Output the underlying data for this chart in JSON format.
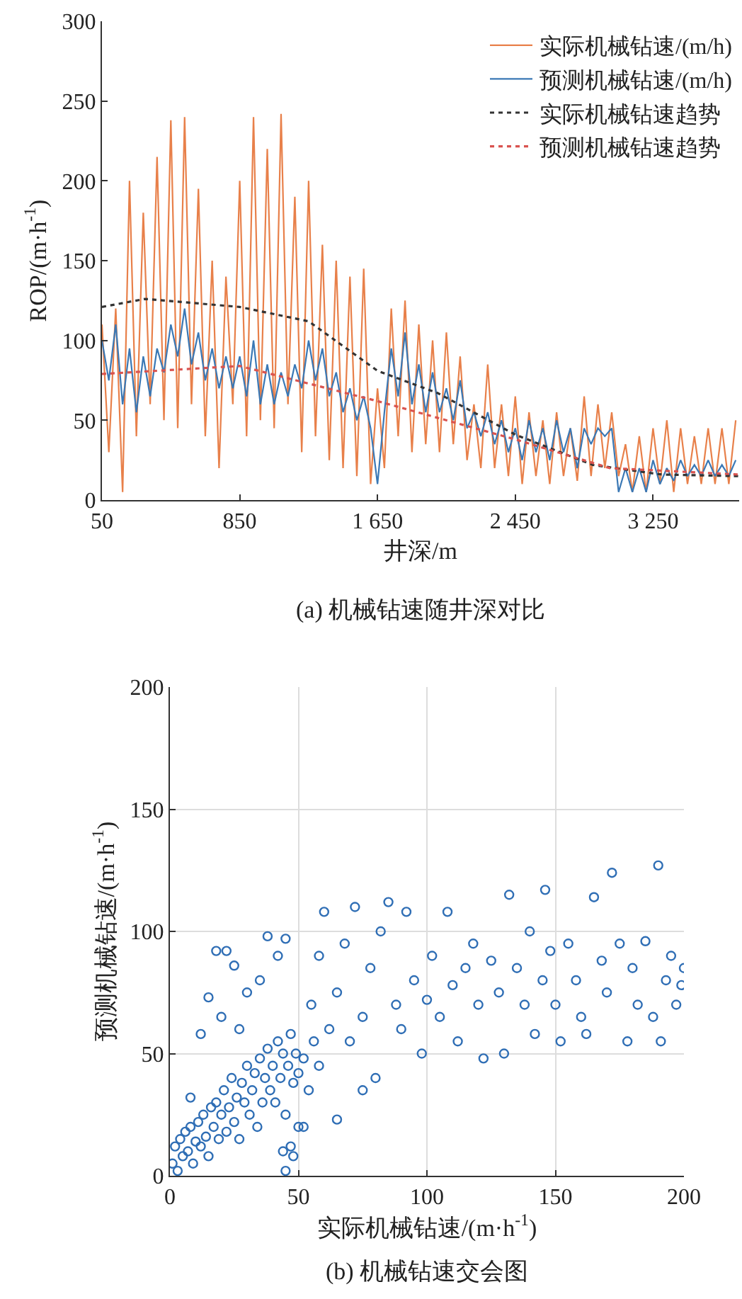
{
  "chart_data": [
    {
      "type": "line",
      "xlabel": "井深/m",
      "ylabel": "ROP/(m·h$^{-1}$)",
      "annotations": [
        "(a) 机械钻速随井深对比"
      ],
      "xlim": [
        50,
        3750
      ],
      "xticks": [
        50,
        850,
        {
          "value": 1650,
          "label": "1 650"
        },
        {
          "value": 2450,
          "label": "2 450"
        },
        {
          "value": 3250,
          "label": "3 250"
        }
      ],
      "ylim": [
        0,
        300
      ],
      "yticks": [
        0,
        50,
        100,
        150,
        200,
        250,
        300
      ],
      "grid": false,
      "legend": "top right",
      "x": [
        50,
        90,
        130,
        170,
        210,
        250,
        290,
        330,
        370,
        410,
        450,
        490,
        530,
        570,
        610,
        650,
        690,
        730,
        770,
        810,
        850,
        890,
        930,
        970,
        1010,
        1050,
        1090,
        1130,
        1170,
        1210,
        1250,
        1290,
        1330,
        1370,
        1410,
        1450,
        1490,
        1530,
        1570,
        1610,
        1650,
        1690,
        1730,
        1770,
        1810,
        1850,
        1890,
        1930,
        1970,
        2010,
        2050,
        2090,
        2130,
        2170,
        2210,
        2250,
        2290,
        2330,
        2370,
        2410,
        2450,
        2490,
        2530,
        2570,
        2610,
        2650,
        2690,
        2730,
        2770,
        2810,
        2850,
        2890,
        2930,
        2970,
        3010,
        3050,
        3090,
        3130,
        3170,
        3210,
        3250,
        3290,
        3330,
        3370,
        3410,
        3450,
        3490,
        3530,
        3570,
        3610,
        3650,
        3690,
        3730
      ],
      "series": [
        {
          "name": "实际机械钻速/(m/h)",
          "color": "#e8804a",
          "line_style": "solid",
          "values": [
            110,
            30,
            120,
            5,
            200,
            40,
            180,
            60,
            215,
            50,
            238,
            45,
            240,
            60,
            195,
            40,
            150,
            20,
            140,
            60,
            200,
            40,
            240,
            50,
            220,
            45,
            242,
            60,
            190,
            30,
            200,
            40,
            160,
            25,
            150,
            20,
            140,
            15,
            145,
            10,
            70,
            20,
            120,
            40,
            125,
            30,
            110,
            35,
            100,
            30,
            105,
            35,
            90,
            25,
            60,
            20,
            85,
            20,
            60,
            15,
            65,
            10,
            55,
            15,
            50,
            10,
            55,
            15,
            45,
            12,
            65,
            15,
            60,
            20,
            55,
            15,
            35,
            5,
            40,
            5,
            45,
            10,
            50,
            5,
            45,
            10,
            40,
            10,
            45,
            10,
            45,
            10,
            50
          ]
        },
        {
          "name": "预测机械钻速/(m/h)",
          "color": "#3a78b5",
          "line_style": "solid",
          "values": [
            100,
            75,
            110,
            60,
            95,
            55,
            90,
            65,
            95,
            80,
            110,
            90,
            120,
            85,
            105,
            75,
            95,
            70,
            90,
            70,
            90,
            65,
            100,
            60,
            85,
            60,
            80,
            65,
            85,
            70,
            100,
            75,
            95,
            65,
            80,
            55,
            70,
            50,
            65,
            45,
            10,
            55,
            95,
            65,
            105,
            60,
            85,
            55,
            80,
            55,
            70,
            50,
            75,
            45,
            55,
            40,
            55,
            35,
            50,
            30,
            45,
            25,
            50,
            30,
            45,
            25,
            50,
            30,
            45,
            20,
            45,
            35,
            45,
            40,
            45,
            5,
            20,
            5,
            20,
            5,
            25,
            10,
            20,
            12,
            25,
            15,
            22,
            15,
            25,
            15,
            22,
            15,
            25
          ]
        },
        {
          "name": "实际机械钻速趋势",
          "color": "#333333",
          "line_style": "dotted",
          "x": [
            50,
            300,
            850,
            1250,
            1650,
            2000,
            2450,
            2900,
            3300,
            3750
          ],
          "values": [
            121,
            126,
            121,
            112,
            81,
            67,
            41,
            22,
            16,
            15
          ]
        },
        {
          "name": "预测机械钻速趋势",
          "color": "#d9534f",
          "line_style": "dotted",
          "x": [
            50,
            850,
            1650,
            2450,
            3000,
            3750
          ],
          "values": [
            79,
            84,
            62,
            38,
            20,
            16
          ]
        }
      ]
    },
    {
      "type": "scatter",
      "xlabel": "实际机械钻速/(m·h$^{-1}$)",
      "ylabel": "预测机械钻速/(m·h$^{-1}$)",
      "annotations": [
        "(b) 机械钻速交会图"
      ],
      "xlim": [
        0,
        200
      ],
      "xticks": [
        0,
        50,
        100,
        150,
        200
      ],
      "ylim": [
        0,
        200
      ],
      "yticks": [
        0,
        50,
        100,
        150,
        200
      ],
      "grid": true,
      "marker": "circle",
      "series": [
        {
          "color": "#2f6eb5",
          "x": [
            1,
            2,
            3,
            4,
            5,
            6,
            7,
            8,
            9,
            10,
            11,
            12,
            13,
            14,
            15,
            16,
            17,
            18,
            19,
            20,
            21,
            22,
            23,
            24,
            25,
            26,
            27,
            28,
            29,
            30,
            31,
            32,
            33,
            34,
            35,
            36,
            37,
            38,
            39,
            40,
            41,
            42,
            43,
            44,
            45,
            46,
            47,
            48,
            49,
            50,
            52,
            54,
            56,
            58,
            8,
            12,
            15,
            18,
            22,
            25,
            20,
            27,
            30,
            35,
            38,
            42,
            45,
            47,
            45,
            50,
            52,
            44,
            48,
            55,
            58,
            60,
            62,
            65,
            68,
            70,
            72,
            75,
            78,
            80,
            82,
            85,
            88,
            90,
            92,
            95,
            98,
            100,
            102,
            105,
            108,
            110,
            112,
            115,
            118,
            120,
            122,
            125,
            128,
            130,
            132,
            135,
            138,
            140,
            142,
            145,
            146,
            148,
            150,
            152,
            155,
            158,
            160,
            162,
            165,
            168,
            170,
            172,
            175,
            178,
            180,
            182,
            185,
            188,
            190,
            191,
            193,
            195,
            197,
            199,
            200,
            65,
            75
          ],
          "values": [
            5,
            12,
            2,
            15,
            8,
            18,
            10,
            20,
            5,
            14,
            22,
            12,
            25,
            16,
            8,
            28,
            20,
            30,
            15,
            25,
            35,
            18,
            28,
            40,
            22,
            32,
            15,
            38,
            30,
            45,
            25,
            35,
            42,
            20,
            48,
            30,
            40,
            52,
            35,
            45,
            30,
            55,
            40,
            50,
            25,
            45,
            58,
            38,
            50,
            42,
            48,
            35,
            55,
            45,
            32,
            58,
            73,
            92,
            92,
            86,
            65,
            60,
            75,
            80,
            98,
            90,
            97,
            12,
            2,
            20,
            20,
            10,
            8,
            70,
            90,
            108,
            60,
            75,
            95,
            55,
            110,
            65,
            85,
            40,
            100,
            112,
            70,
            60,
            108,
            80,
            50,
            72,
            90,
            65,
            108,
            78,
            55,
            85,
            95,
            70,
            48,
            88,
            75,
            50,
            115,
            85,
            70,
            100,
            58,
            80,
            117,
            92,
            70,
            55,
            95,
            80,
            65,
            58,
            114,
            88,
            75,
            124,
            95,
            55,
            85,
            70,
            96,
            65,
            127,
            55,
            80,
            90,
            70,
            78,
            85,
            23,
            35
          ]
        }
      ]
    }
  ]
}
